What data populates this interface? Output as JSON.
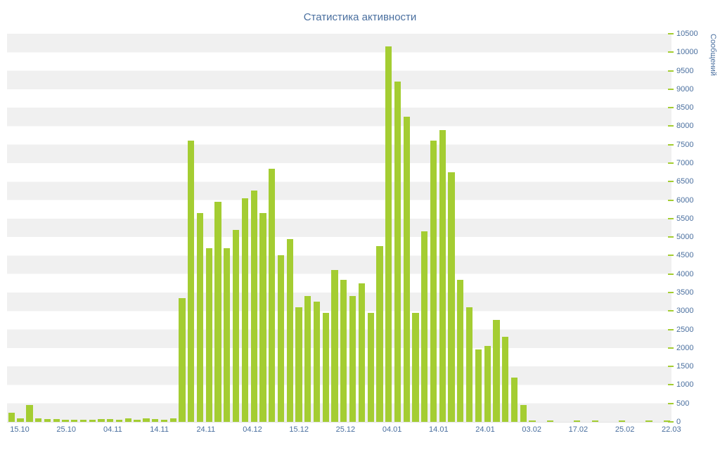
{
  "chart_data": {
    "type": "bar",
    "title": "Статистика активности",
    "ylabel": "Сообщений",
    "xlabel": "",
    "ylim": [
      0,
      10500
    ],
    "y_tick_step": 500,
    "grid": "horizontal striped bands",
    "legend_position": "none",
    "y_tick_labels": [
      "10500",
      "10000",
      "9500",
      "9000",
      "8500",
      "8000",
      "7500",
      "7000",
      "6500",
      "6000",
      "5500",
      "5000",
      "4500",
      "4000",
      "3500",
      "3000",
      "2500",
      "2000",
      "1500",
      "1000",
      "500",
      "0"
    ],
    "x_tick_labels": [
      "15.10",
      "25.10",
      "04.11",
      "14.11",
      "24.11",
      "04.12",
      "15.12",
      "25.12",
      "04.01",
      "14.01",
      "24.01",
      "03.02",
      "17.02",
      "25.02",
      "22.03"
    ],
    "values": [
      250,
      100,
      450,
      100,
      80,
      80,
      60,
      50,
      60,
      50,
      80,
      80,
      60,
      100,
      60,
      90,
      70,
      60,
      90,
      3350,
      7600,
      5650,
      4700,
      5950,
      4700,
      5200,
      6050,
      6250,
      5650,
      6850,
      4500,
      4950,
      3100,
      3400,
      3250,
      2950,
      4100,
      3850,
      3400,
      3750,
      2950,
      4750,
      10150,
      9200,
      8250,
      2950,
      5150,
      7600,
      7900,
      6750,
      3850,
      3100,
      1950,
      2050,
      2750,
      2300,
      1200,
      450,
      30,
      0,
      30,
      0,
      0,
      30,
      0,
      30,
      0,
      0,
      30,
      0,
      0,
      30,
      0,
      30
    ],
    "colors": {
      "bar": "#a4cd32",
      "stripe": "#f0f0f0",
      "text": "#4a6f9f",
      "background": "#ffffff"
    }
  }
}
